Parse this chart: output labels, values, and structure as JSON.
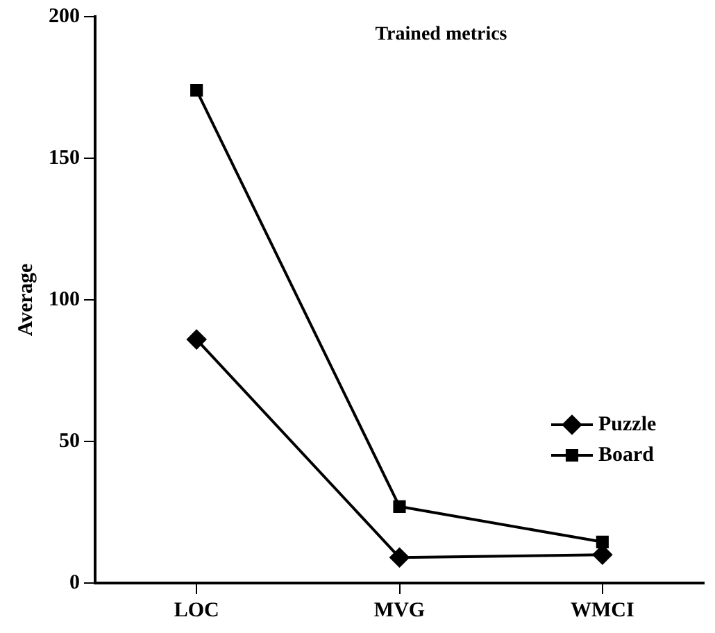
{
  "chart_data": {
    "type": "line",
    "title": "Trained metrics",
    "ylabel": "Average",
    "categories": [
      "LOC",
      "MVG",
      "WMCI"
    ],
    "series": [
      {
        "name": "Puzzle",
        "color": "#000000",
        "marker": "diamond",
        "values": [
          86,
          9,
          10
        ]
      },
      {
        "name": "Board",
        "color": "#000000",
        "marker": "square",
        "values": [
          174,
          27,
          14.5
        ]
      }
    ],
    "ylim": [
      0,
      200
    ],
    "yticks": [
      0,
      50,
      100,
      150,
      200
    ],
    "grid": false,
    "legend": "bottom right"
  }
}
